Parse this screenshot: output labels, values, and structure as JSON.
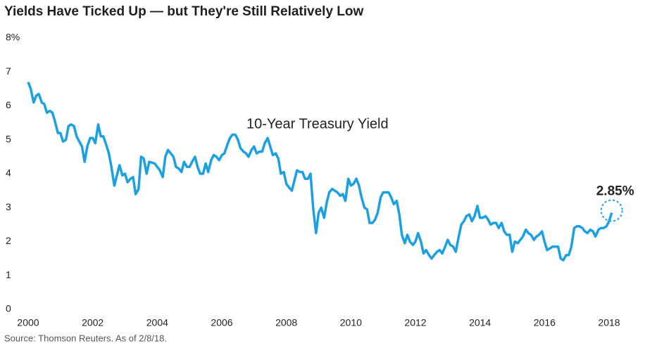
{
  "chart_data": {
    "type": "line",
    "title": "Yields Have Ticked Up — but They're Still Relatively Low",
    "source": "Source: Thomson Reuters. As of 2/8/18.",
    "annotations": [
      "2.85%"
    ],
    "x": [
      2000.0,
      2000.08,
      2000.17,
      2000.25,
      2000.33,
      2000.42,
      2000.5,
      2000.58,
      2000.67,
      2000.75,
      2000.83,
      2000.92,
      2001.0,
      2001.08,
      2001.17,
      2001.25,
      2001.33,
      2001.42,
      2001.5,
      2001.67,
      2001.75,
      2001.83,
      2001.92,
      2002.0,
      2002.08,
      2002.17,
      2002.25,
      2002.33,
      2002.42,
      2002.5,
      2002.58,
      2002.67,
      2002.75,
      2002.83,
      2002.92,
      2003.0,
      2003.08,
      2003.17,
      2003.25,
      2003.33,
      2003.42,
      2003.5,
      2003.58,
      2003.67,
      2003.75,
      2003.92,
      2004.0,
      2004.08,
      2004.17,
      2004.25,
      2004.33,
      2004.42,
      2004.5,
      2004.58,
      2004.67,
      2004.75,
      2004.83,
      2004.92,
      2005.0,
      2005.08,
      2005.17,
      2005.25,
      2005.33,
      2005.42,
      2005.5,
      2005.58,
      2005.67,
      2005.75,
      2005.83,
      2005.92,
      2006.0,
      2006.08,
      2006.17,
      2006.25,
      2006.33,
      2006.42,
      2006.5,
      2006.58,
      2006.67,
      2006.75,
      2006.83,
      2006.92,
      2007.0,
      2007.08,
      2007.17,
      2007.25,
      2007.33,
      2007.42,
      2007.5,
      2007.58,
      2007.67,
      2007.75,
      2007.83,
      2007.92,
      2008.0,
      2008.08,
      2008.17,
      2008.25,
      2008.33,
      2008.42,
      2008.5,
      2008.58,
      2008.67,
      2008.75,
      2008.83,
      2008.92,
      2009.0,
      2009.08,
      2009.17,
      2009.25,
      2009.33,
      2009.42,
      2009.5,
      2009.58,
      2009.67,
      2009.75,
      2009.83,
      2009.92,
      2010.0,
      2010.08,
      2010.17,
      2010.25,
      2010.33,
      2010.42,
      2010.5,
      2010.58,
      2010.67,
      2010.75,
      2010.83,
      2010.92,
      2011.0,
      2011.08,
      2011.17,
      2011.25,
      2011.33,
      2011.42,
      2011.5,
      2011.58,
      2011.67,
      2011.75,
      2011.83,
      2011.92,
      2012.0,
      2012.08,
      2012.17,
      2012.25,
      2012.33,
      2012.42,
      2012.5,
      2012.58,
      2012.67,
      2012.75,
      2012.83,
      2012.92,
      2013.0,
      2013.08,
      2013.17,
      2013.25,
      2013.33,
      2013.42,
      2013.5,
      2013.58,
      2013.67,
      2013.75,
      2013.83,
      2013.92,
      2014.0,
      2014.08,
      2014.17,
      2014.25,
      2014.33,
      2014.42,
      2014.5,
      2014.58,
      2014.67,
      2014.75,
      2014.83,
      2014.92,
      2015.0,
      2015.08,
      2015.17,
      2015.25,
      2015.33,
      2015.42,
      2015.5,
      2015.58,
      2015.67,
      2015.75,
      2015.83,
      2015.92,
      2016.0,
      2016.08,
      2016.17,
      2016.25,
      2016.33,
      2016.42,
      2016.5,
      2016.58,
      2016.67,
      2016.75,
      2016.83,
      2016.92,
      2017.0,
      2017.08,
      2017.17,
      2017.25,
      2017.33,
      2017.42,
      2017.5,
      2017.58,
      2017.67,
      2017.75,
      2017.83,
      2017.92,
      2018.0,
      2018.08
    ],
    "series": [
      {
        "name": "10-Year Treasury Yield",
        "color": "#1ba1e2",
        "values": [
          6.7,
          6.5,
          6.1,
          6.3,
          6.35,
          6.1,
          6.05,
          5.8,
          5.85,
          5.8,
          5.55,
          5.2,
          5.2,
          4.95,
          5.0,
          5.4,
          5.45,
          5.4,
          5.1,
          4.8,
          4.35,
          4.8,
          5.05,
          5.05,
          4.9,
          5.45,
          5.1,
          5.1,
          4.85,
          4.6,
          4.2,
          3.65,
          3.95,
          4.25,
          3.95,
          4.0,
          3.75,
          3.85,
          3.9,
          3.4,
          3.55,
          4.5,
          4.45,
          4.0,
          4.35,
          4.3,
          4.2,
          4.1,
          3.9,
          4.5,
          4.7,
          4.6,
          4.5,
          4.2,
          4.15,
          4.05,
          4.35,
          4.2,
          4.2,
          4.35,
          4.5,
          4.2,
          4.0,
          4.0,
          4.3,
          4.05,
          4.4,
          4.55,
          4.5,
          4.4,
          4.55,
          4.6,
          4.85,
          5.05,
          5.15,
          5.15,
          5.0,
          4.75,
          4.65,
          4.6,
          4.5,
          4.7,
          4.8,
          4.6,
          4.65,
          4.65,
          4.9,
          5.05,
          4.8,
          4.55,
          4.6,
          4.45,
          4.0,
          4.05,
          3.7,
          3.6,
          3.5,
          3.8,
          4.1,
          4.05,
          4.05,
          3.85,
          3.85,
          4.0,
          3.0,
          2.25,
          2.85,
          3.0,
          2.7,
          3.15,
          3.45,
          3.55,
          3.5,
          3.45,
          3.35,
          3.4,
          3.2,
          3.85,
          3.65,
          3.7,
          3.85,
          3.65,
          3.3,
          3.0,
          2.95,
          2.55,
          2.55,
          2.65,
          2.85,
          3.3,
          3.45,
          3.45,
          3.45,
          3.3,
          3.1,
          3.2,
          2.8,
          2.2,
          1.95,
          2.2,
          2.0,
          1.9,
          2.0,
          2.25,
          2.0,
          1.65,
          1.75,
          1.6,
          1.5,
          1.6,
          1.7,
          1.75,
          1.65,
          1.85,
          2.05,
          1.9,
          1.85,
          1.7,
          2.1,
          2.5,
          2.6,
          2.75,
          2.8,
          2.6,
          2.75,
          3.05,
          2.7,
          2.7,
          2.75,
          2.65,
          2.5,
          2.55,
          2.55,
          2.4,
          2.55,
          2.3,
          2.2,
          2.2,
          1.7,
          2.0,
          1.95,
          2.05,
          2.15,
          2.35,
          2.25,
          2.2,
          2.05,
          2.15,
          2.2,
          2.3,
          2.0,
          1.75,
          1.8,
          1.85,
          1.85,
          1.85,
          1.5,
          1.45,
          1.6,
          1.6,
          1.85,
          2.4,
          2.45,
          2.45,
          2.4,
          2.3,
          2.25,
          2.35,
          2.3,
          2.15,
          2.35,
          2.4,
          2.4,
          2.45,
          2.6,
          2.85
        ]
      }
    ],
    "xlim": [
      2000,
      2018
    ],
    "xticks": [
      2000,
      2002,
      2004,
      2006,
      2008,
      2010,
      2012,
      2014,
      2016,
      2018
    ],
    "ylim": [
      0,
      8
    ],
    "yticks": [
      0,
      1,
      2,
      3,
      4,
      5,
      6,
      7,
      {
        "value": 8,
        "label": "8%"
      }
    ],
    "grid": false
  }
}
